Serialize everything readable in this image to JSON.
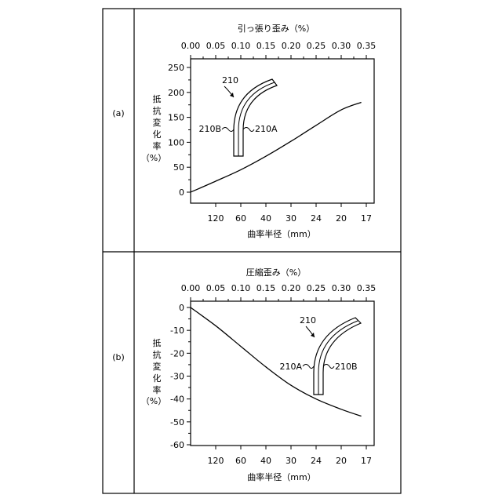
{
  "panels": [
    {
      "label": "(a)",
      "top_axis_label": "引っ張り歪み（%）",
      "bottom_axis_label": "曲率半径（mm）",
      "y_label_chars": [
        "抵",
        "抗",
        "変",
        "化",
        "率"
      ],
      "y_label_unit": "（%）",
      "diagram": {
        "ref": "210",
        "left_label": "210B",
        "right_label": "210A"
      }
    },
    {
      "label": "(b)",
      "top_axis_label": "圧縮歪み（%）",
      "bottom_axis_label": "曲率半径（mm）",
      "y_label_chars": [
        "抵",
        "抗",
        "変",
        "化",
        "率"
      ],
      "y_label_unit": "（%）",
      "diagram": {
        "ref": "210",
        "left_label": "210A",
        "right_label": "210B"
      }
    }
  ],
  "chart_data": [
    {
      "type": "line",
      "x_axis": "strain (%)",
      "xlim": [
        0.0,
        0.35
      ],
      "x_ticks": [
        "0.00",
        "0.05",
        "0.10",
        "0.15",
        "0.20",
        "0.25",
        "0.30",
        "0.35"
      ],
      "x_tick_values": [
        0.0,
        0.05,
        0.1,
        0.15,
        0.2,
        0.25,
        0.3,
        0.35
      ],
      "bottom_ticks": [
        "120",
        "60",
        "40",
        "30",
        "24",
        "20",
        "17"
      ],
      "bottom_tick_values": [
        0.05,
        0.1,
        0.15,
        0.2,
        0.25,
        0.3,
        0.35
      ],
      "ylim": [
        -10,
        250
      ],
      "y_ticks": [
        "250",
        "200",
        "150",
        "100",
        "50",
        "0"
      ],
      "y_tick_values": [
        250,
        200,
        150,
        100,
        50,
        0
      ],
      "series": [
        {
          "x": [
            0.0,
            0.05,
            0.1,
            0.15,
            0.2,
            0.25,
            0.3,
            0.34
          ],
          "y": [
            0,
            22,
            45,
            72,
            102,
            134,
            165,
            180
          ]
        }
      ]
    },
    {
      "type": "line",
      "x_axis": "strain (%)",
      "xlim": [
        0.0,
        0.35
      ],
      "x_ticks": [
        "0.00",
        "0.05",
        "0.10",
        "0.15",
        "0.20",
        "0.25",
        "0.30",
        "0.35"
      ],
      "x_tick_values": [
        0.0,
        0.05,
        0.1,
        0.15,
        0.2,
        0.25,
        0.3,
        0.35
      ],
      "bottom_ticks": [
        "120",
        "60",
        "40",
        "30",
        "24",
        "20",
        "17"
      ],
      "bottom_tick_values": [
        0.05,
        0.1,
        0.15,
        0.2,
        0.25,
        0.3,
        0.35
      ],
      "ylim": [
        -60,
        0
      ],
      "y_ticks": [
        "0",
        "-10",
        "-20",
        "-30",
        "-40",
        "-50",
        "-60"
      ],
      "y_tick_values": [
        0,
        -10,
        -20,
        -30,
        -40,
        -50,
        -60
      ],
      "series": [
        {
          "x": [
            0.0,
            0.05,
            0.1,
            0.15,
            0.2,
            0.25,
            0.3,
            0.34
          ],
          "y": [
            0,
            -8,
            -17,
            -26,
            -34,
            -40,
            -44.5,
            -47.5
          ]
        }
      ]
    }
  ]
}
